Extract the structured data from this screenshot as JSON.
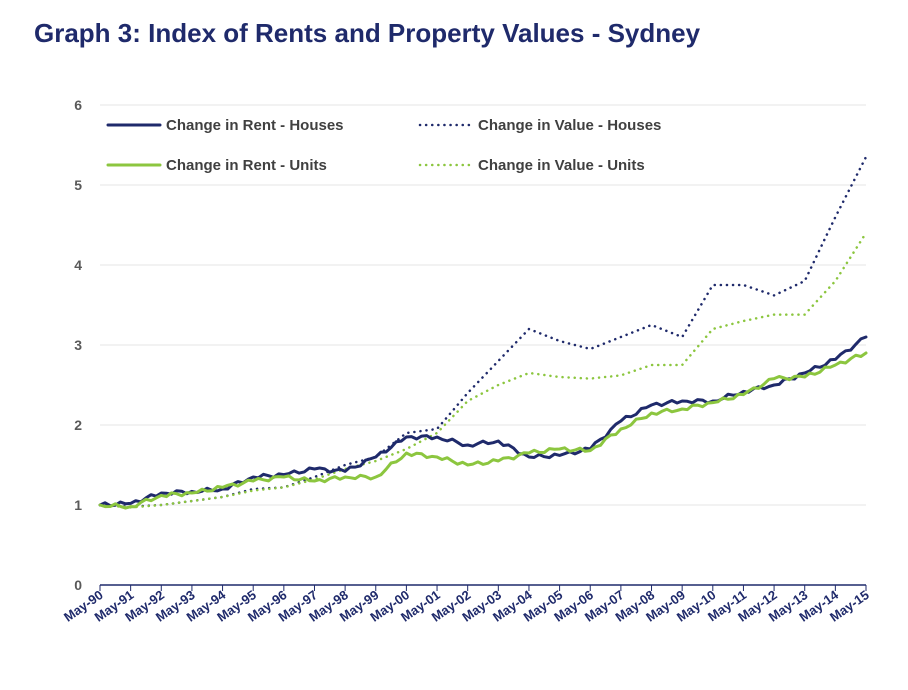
{
  "title": "Graph 3: Index of Rents and Property Values - Sydney",
  "colors": {
    "houses": "#1f2a6b",
    "units": "#8cc63f",
    "grid": "#e6e6e6",
    "axis": "#1f2a6b"
  },
  "chart_data": {
    "type": "line",
    "title": "Graph 3: Index of Rents and Property Values - Sydney",
    "xlabel": "",
    "ylabel": "",
    "ylim": [
      0,
      6
    ],
    "yticks": [
      0,
      1,
      2,
      3,
      4,
      5,
      6
    ],
    "grid": true,
    "legend_position": "top-left",
    "x": [
      "May-90",
      "May-91",
      "May-92",
      "May-93",
      "May-94",
      "May-95",
      "May-96",
      "May-97",
      "May-98",
      "May-99",
      "May-00",
      "May-01",
      "May-02",
      "May-03",
      "May-04",
      "May-05",
      "May-06",
      "May-07",
      "May-08",
      "May-09",
      "May-10",
      "May-11",
      "May-12",
      "May-13",
      "May-14",
      "May-15"
    ],
    "series": [
      {
        "name": "Change in Rent - Houses",
        "style": "solid",
        "color": "#1f2a6b",
        "values": [
          1.0,
          1.02,
          1.15,
          1.17,
          1.2,
          1.35,
          1.38,
          1.45,
          1.42,
          1.6,
          1.85,
          1.85,
          1.75,
          1.8,
          1.6,
          1.62,
          1.7,
          2.05,
          2.25,
          2.3,
          2.3,
          2.42,
          2.5,
          2.65,
          2.82,
          3.1
        ]
      },
      {
        "name": "Change in Value - Houses",
        "style": "dotted",
        "color": "#1f2a6b",
        "values": [
          1.0,
          0.98,
          1.0,
          1.05,
          1.1,
          1.2,
          1.22,
          1.35,
          1.5,
          1.6,
          1.9,
          1.95,
          2.4,
          2.8,
          3.2,
          3.05,
          2.95,
          3.1,
          3.25,
          3.1,
          3.75,
          3.75,
          3.62,
          3.8,
          4.6,
          5.35
        ]
      },
      {
        "name": "Change in Rent - Units",
        "style": "solid",
        "color": "#8cc63f",
        "values": [
          1.0,
          0.98,
          1.12,
          1.15,
          1.22,
          1.3,
          1.35,
          1.3,
          1.35,
          1.35,
          1.65,
          1.6,
          1.5,
          1.55,
          1.65,
          1.7,
          1.68,
          1.95,
          2.15,
          2.2,
          2.28,
          2.38,
          2.58,
          2.6,
          2.75,
          2.9
        ]
      },
      {
        "name": "Change in Value - Units",
        "style": "dotted",
        "color": "#8cc63f",
        "values": [
          1.0,
          0.97,
          1.0,
          1.05,
          1.1,
          1.18,
          1.22,
          1.32,
          1.45,
          1.55,
          1.7,
          1.9,
          2.3,
          2.5,
          2.65,
          2.6,
          2.58,
          2.62,
          2.75,
          2.75,
          3.2,
          3.3,
          3.38,
          3.38,
          3.8,
          4.4
        ]
      }
    ]
  }
}
